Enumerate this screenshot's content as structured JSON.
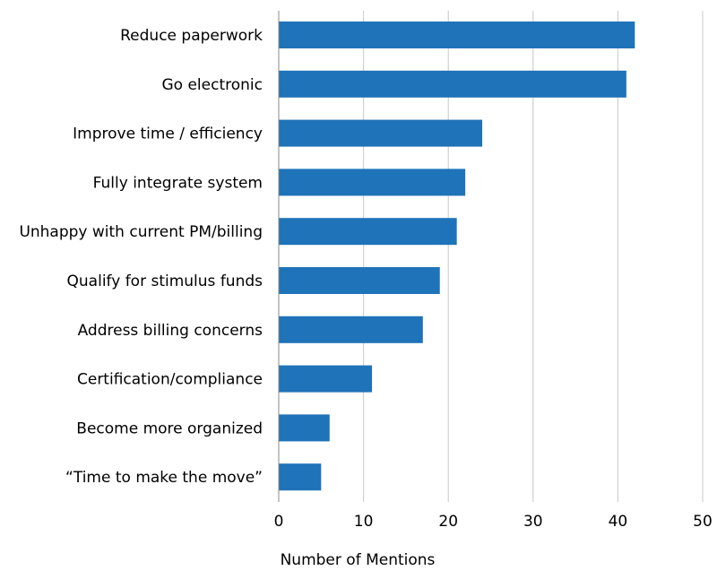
{
  "chart_data": {
    "type": "bar",
    "orientation": "horizontal",
    "title": "",
    "xlabel": "Number of Mentions",
    "ylabel": "",
    "categories": [
      "Reduce paperwork",
      "Go electronic",
      "Improve time / efficiency",
      "Fully integrate system",
      "Unhappy with current PM/billing",
      "Qualify for stimulus funds",
      "Address billing concerns",
      "Certification/compliance",
      "Become more organized",
      "“Time to make the move”"
    ],
    "values": [
      42,
      41,
      24,
      22,
      21,
      19,
      17,
      11,
      6,
      5
    ],
    "xlim": [
      0,
      50
    ],
    "xticks": [
      0,
      10,
      20,
      30,
      40,
      50
    ],
    "grid": "vertical",
    "legend": "none",
    "bar_color": "#1f73b8"
  }
}
